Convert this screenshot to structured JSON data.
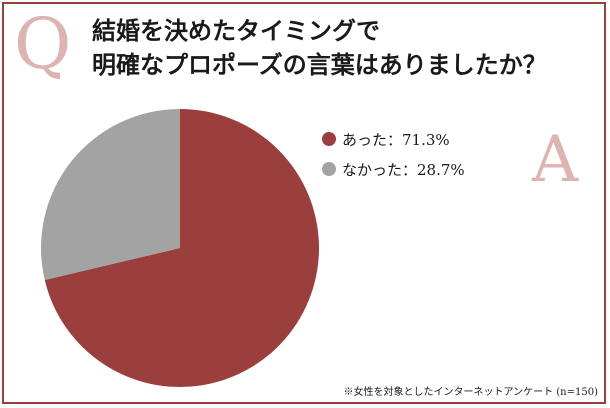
{
  "header": {
    "q_letter": "Q",
    "a_letter": "A",
    "title_line1": "結婚を決めたタイミングで",
    "title_line2": "明確なプロポーズの言葉はありましたか？"
  },
  "chart_data": {
    "type": "pie",
    "slices": [
      {
        "label": "あった",
        "value": 71.3,
        "display": "あった：71.3%",
        "color": "#9b3f3e"
      },
      {
        "label": "なかった",
        "value": 28.7,
        "display": "なかった：28.7%",
        "color": "#a3a3a3"
      }
    ],
    "start_angle_deg": 0,
    "direction": "clockwise",
    "legend_position": "right"
  },
  "footnote": "※女性を対象としたインターネットアンケート (n=150)"
}
